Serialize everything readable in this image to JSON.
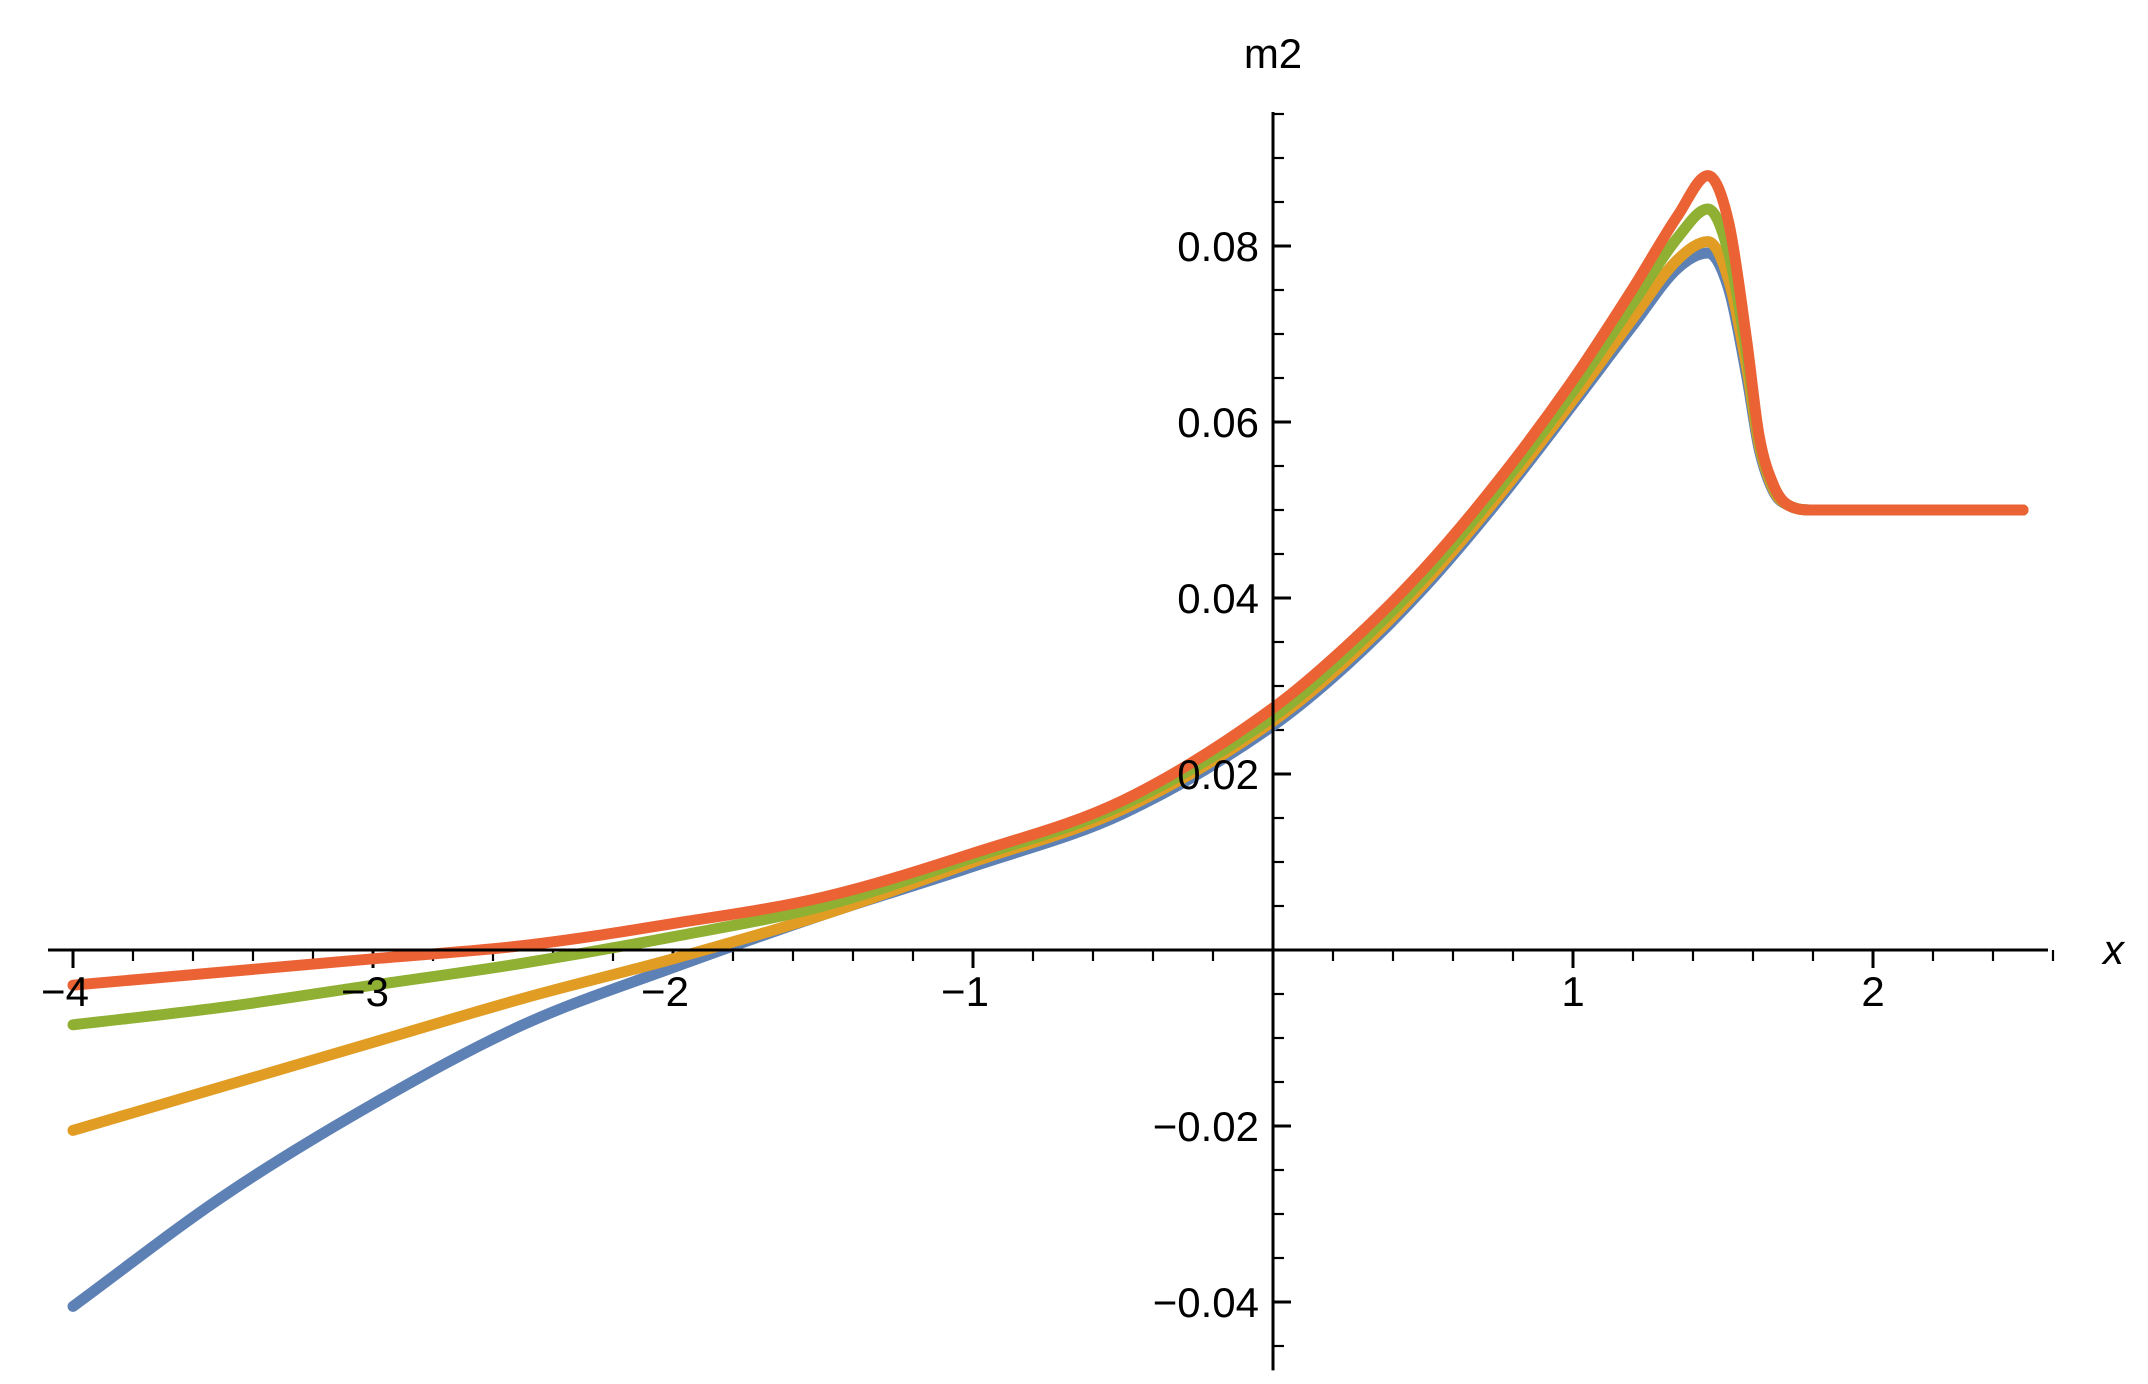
{
  "chart_data": {
    "type": "line",
    "xlabel": "x",
    "ylabel": "m2",
    "xlim": [
      -4.1,
      2.6
    ],
    "ylim": [
      -0.048,
      0.095
    ],
    "x_ticks": [
      -4,
      -3,
      -2,
      -1,
      1,
      2
    ],
    "x_tick_labels": [
      "−4",
      "−3",
      "−2",
      "−1",
      "1",
      "2"
    ],
    "y_ticks": [
      -0.04,
      -0.02,
      0.02,
      0.04,
      0.06,
      0.08
    ],
    "y_tick_labels": [
      "−0.04",
      "−0.02",
      "0.02",
      "0.04",
      "0.06",
      "0.08"
    ],
    "grid": false,
    "legend": "none",
    "x": [
      -4.0,
      -3.5,
      -3.0,
      -2.5,
      -2.0,
      -1.5,
      -1.0,
      -0.5,
      0.0,
      0.25,
      0.5,
      0.75,
      1.0,
      1.2,
      1.35,
      1.45,
      1.52,
      1.58,
      1.62,
      1.67,
      1.72,
      1.8,
      1.9,
      2.0,
      2.25,
      2.5
    ],
    "series": [
      {
        "color": "#5E81B5",
        "values": [
          -0.0405,
          -0.028,
          -0.0175,
          -0.0085,
          -0.002,
          0.004,
          0.0095,
          0.0155,
          0.0255,
          0.0325,
          0.041,
          0.051,
          0.062,
          0.071,
          0.0775,
          0.0792,
          0.075,
          0.065,
          0.057,
          0.052,
          0.0505,
          0.05,
          0.05,
          0.05,
          0.05,
          0.05
        ]
      },
      {
        "color": "#E19C24",
        "values": [
          -0.0205,
          -0.0155,
          -0.0105,
          -0.0055,
          -0.001,
          0.004,
          0.01,
          0.016,
          0.026,
          0.033,
          0.0415,
          0.0515,
          0.0625,
          0.0718,
          0.0785,
          0.0805,
          0.076,
          0.066,
          0.0575,
          0.0522,
          0.0505,
          0.05,
          0.05,
          0.05,
          0.05,
          0.05
        ]
      },
      {
        "color": "#8FB032",
        "values": [
          -0.0085,
          -0.0065,
          -0.004,
          -0.0015,
          0.0015,
          0.005,
          0.0105,
          0.0165,
          0.0265,
          0.0337,
          0.0422,
          0.0523,
          0.0635,
          0.0735,
          0.081,
          0.0842,
          0.079,
          0.0675,
          0.058,
          0.0525,
          0.0505,
          0.05,
          0.05,
          0.05,
          0.05,
          0.05
        ]
      },
      {
        "color": "#EB6235",
        "values": [
          -0.004,
          -0.0025,
          -0.001,
          0.0005,
          0.003,
          0.006,
          0.011,
          0.017,
          0.0275,
          0.0347,
          0.0432,
          0.0533,
          0.0648,
          0.0752,
          0.0835,
          0.088,
          0.0825,
          0.069,
          0.0585,
          0.0527,
          0.0505,
          0.05,
          0.05,
          0.05,
          0.05,
          0.05
        ]
      }
    ]
  }
}
